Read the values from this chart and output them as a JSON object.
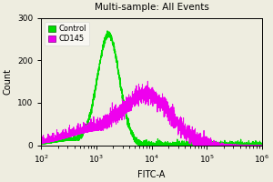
{
  "title": "Multi-sample: All Events",
  "xlabel": "FITC-A",
  "ylabel": "Count",
  "xlim_log": [
    100,
    1000000
  ],
  "ylim": [
    0,
    300
  ],
  "yticks": [
    0,
    100,
    200,
    300
  ],
  "control_color": "#00dd00",
  "cd145_color": "#ee00ee",
  "legend_labels": [
    "Control",
    "CD145"
  ],
  "background_color": "#eeede0",
  "control_mean_log": 3.22,
  "control_std_log": 0.2,
  "control_peak_height": 258,
  "cd145_mean_log": 3.95,
  "cd145_std_log": 0.42,
  "cd145_peak_height": 110,
  "cd145_noise_std": 10,
  "figsize": [
    3.0,
    2.0
  ],
  "dpi": 100
}
